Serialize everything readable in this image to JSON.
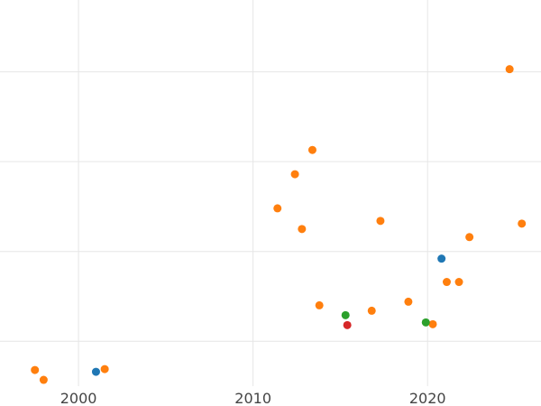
{
  "chart_data": {
    "type": "scatter",
    "title": "",
    "xlabel": "",
    "ylabel": "",
    "xlim": [
      1995.5,
      2026.5
    ],
    "ylim": [
      0,
      43
    ],
    "x_ticks": [
      2000,
      2010,
      2020
    ],
    "x_tick_labels": [
      "2000",
      "2010",
      "2020"
    ],
    "y_ticks": [
      5,
      15,
      25,
      35,
      45
    ],
    "show_y_tick_labels": false,
    "grid": true,
    "legend": "none",
    "colors": {
      "blue": "#1f77b4",
      "orange": "#ff7f0e",
      "green": "#2ca02c",
      "red": "#d62728",
      "grid": "#e6e6e6",
      "axis_text": "#444444"
    },
    "series": [
      {
        "color": "blue",
        "points": [
          [
            2001.0,
            1.6
          ],
          [
            2020.8,
            14.2
          ]
        ]
      },
      {
        "color": "orange",
        "points": [
          [
            1997.5,
            1.8
          ],
          [
            1998.0,
            0.7
          ],
          [
            2001.5,
            1.9
          ],
          [
            2011.4,
            19.8
          ],
          [
            2012.4,
            23.6
          ],
          [
            2012.8,
            17.5
          ],
          [
            2013.4,
            26.3
          ],
          [
            2013.8,
            9.0
          ],
          [
            2016.8,
            8.4
          ],
          [
            2017.3,
            18.4
          ],
          [
            2018.9,
            9.4
          ],
          [
            2020.3,
            6.9
          ],
          [
            2021.1,
            11.6
          ],
          [
            2021.8,
            11.6
          ],
          [
            2022.4,
            16.6
          ],
          [
            2024.7,
            35.3
          ],
          [
            2025.4,
            18.1
          ]
        ]
      },
      {
        "color": "green",
        "points": [
          [
            2015.3,
            7.9
          ],
          [
            2019.9,
            7.1
          ]
        ]
      },
      {
        "color": "red",
        "points": [
          [
            2015.4,
            6.8
          ]
        ]
      }
    ]
  }
}
